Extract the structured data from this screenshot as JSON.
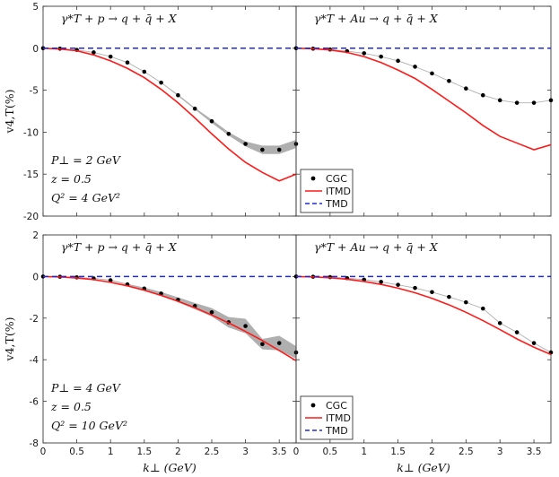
{
  "colors": {
    "cgc": "#000000",
    "itmd": "#ff1a1a",
    "tmd": "#1f2bd6",
    "band": "#a6a6a6",
    "guide": "#b0b0b0"
  },
  "chart_data": [
    {
      "type": "scatter",
      "panel": "top-left",
      "process": "γ*T + p → q + q̄ + X",
      "xlim": [
        0,
        3.75
      ],
      "ylim": [
        -20,
        5
      ],
      "xticks": [
        "0",
        "0.5",
        "1",
        "1.5",
        "2",
        "2.5",
        "3",
        "3.5"
      ],
      "yticks": [
        "5",
        "0",
        "-5",
        "-10",
        "-15",
        "-20"
      ],
      "ylabel": "v4,T(%)",
      "params": [
        "P⊥ = 2 GeV",
        "z = 0.5",
        "Q² = 4 GeV²"
      ],
      "series": [
        {
          "name": "CGC",
          "style": "points",
          "x": [
            0,
            0.25,
            0.5,
            0.75,
            1.0,
            1.25,
            1.5,
            1.75,
            2.0,
            2.25,
            2.5,
            2.75,
            3.0,
            3.25,
            3.5,
            3.75
          ],
          "y": [
            0,
            -0.05,
            -0.2,
            -0.5,
            -1.0,
            -1.7,
            -2.8,
            -4.1,
            -5.6,
            -7.2,
            -8.7,
            -10.2,
            -11.4,
            -12.1,
            -12.1,
            -11.4
          ],
          "band": [
            0,
            0,
            0,
            0,
            0,
            0,
            0,
            0,
            0.1,
            0.1,
            0.2,
            0.2,
            0.3,
            0.5,
            0.5,
            0.5
          ]
        },
        {
          "name": "ITMD",
          "style": "line",
          "x": [
            0,
            0.25,
            0.5,
            0.75,
            1.0,
            1.25,
            1.5,
            1.75,
            2.0,
            2.25,
            2.5,
            2.75,
            3.0,
            3.25,
            3.5,
            3.75
          ],
          "y": [
            0,
            -0.1,
            -0.3,
            -0.8,
            -1.5,
            -2.4,
            -3.5,
            -4.9,
            -6.5,
            -8.3,
            -10.2,
            -12.0,
            -13.6,
            -14.8,
            -15.8,
            -15.0
          ]
        },
        {
          "name": "TMD",
          "style": "dashed",
          "x": [
            0,
            3.75
          ],
          "y": [
            0,
            0
          ]
        }
      ]
    },
    {
      "type": "scatter",
      "panel": "top-right",
      "process": "γ*T + Au → q + q̄ + X",
      "xlim": [
        0,
        3.75
      ],
      "ylim": [
        -20,
        5
      ],
      "xticks": [
        "0",
        "0.5",
        "1",
        "1.5",
        "2",
        "2.5",
        "3",
        "3.5"
      ],
      "legend": [
        "CGC",
        "ITMD",
        "TMD"
      ],
      "series": [
        {
          "name": "CGC",
          "style": "points",
          "x": [
            0,
            0.25,
            0.5,
            0.75,
            1.0,
            1.25,
            1.5,
            1.75,
            2.0,
            2.25,
            2.5,
            2.75,
            3.0,
            3.25,
            3.5,
            3.75
          ],
          "y": [
            0,
            -0.05,
            -0.15,
            -0.35,
            -0.6,
            -1.0,
            -1.5,
            -2.2,
            -3.0,
            -3.9,
            -4.8,
            -5.6,
            -6.2,
            -6.5,
            -6.5,
            -6.2
          ],
          "band": [
            0,
            0,
            0,
            0,
            0,
            0,
            0,
            0,
            0,
            0,
            0,
            0,
            0,
            0,
            0,
            0
          ]
        },
        {
          "name": "ITMD",
          "style": "line",
          "x": [
            0,
            0.25,
            0.5,
            0.75,
            1.0,
            1.25,
            1.5,
            1.75,
            2.0,
            2.25,
            2.5,
            2.75,
            3.0,
            3.25,
            3.5,
            3.75
          ],
          "y": [
            0,
            -0.05,
            -0.2,
            -0.5,
            -1.0,
            -1.7,
            -2.6,
            -3.6,
            -4.9,
            -6.3,
            -7.7,
            -9.2,
            -10.5,
            -11.3,
            -12.1,
            -11.5
          ]
        },
        {
          "name": "TMD",
          "style": "dashed",
          "x": [
            0,
            3.75
          ],
          "y": [
            0,
            0
          ]
        }
      ]
    },
    {
      "type": "scatter",
      "panel": "bottom-left",
      "process": "γ*T + p → q + q̄ + X",
      "xlim": [
        0,
        3.75
      ],
      "ylim": [
        -8,
        2
      ],
      "xticks": [
        "0",
        "0.5",
        "1",
        "1.5",
        "2",
        "2.5",
        "3",
        "3.5"
      ],
      "yticks": [
        "2",
        "0",
        "-2",
        "-4",
        "-6",
        "-8"
      ],
      "xlabel": "k⊥ (GeV)",
      "ylabel": "v4,T(%)",
      "params": [
        "P⊥ = 4 GeV",
        "z = 0.5",
        "Q² = 10 GeV²"
      ],
      "series": [
        {
          "name": "CGC",
          "style": "points",
          "x": [
            0,
            0.25,
            0.5,
            0.75,
            1.0,
            1.25,
            1.5,
            1.75,
            2.0,
            2.25,
            2.5,
            2.75,
            3.0,
            3.25,
            3.5,
            3.75
          ],
          "y": [
            0,
            -0.01,
            -0.04,
            -0.09,
            -0.18,
            -0.38,
            -0.58,
            -0.82,
            -1.12,
            -1.42,
            -1.72,
            -2.2,
            -2.38,
            -3.25,
            -3.2,
            -3.65
          ],
          "band": [
            0,
            0,
            0,
            0.01,
            0.02,
            0.03,
            0.05,
            0.08,
            0.12,
            0.15,
            0.2,
            0.25,
            0.35,
            0.25,
            0.35,
            0.3
          ]
        },
        {
          "name": "ITMD",
          "style": "line",
          "x": [
            0,
            0.25,
            0.5,
            0.75,
            1.0,
            1.25,
            1.5,
            1.75,
            2.0,
            2.25,
            2.5,
            2.75,
            3.0,
            3.25,
            3.5,
            3.75
          ],
          "y": [
            0,
            -0.02,
            -0.07,
            -0.15,
            -0.28,
            -0.45,
            -0.66,
            -0.91,
            -1.19,
            -1.5,
            -1.85,
            -2.23,
            -2.64,
            -3.08,
            -3.56,
            -4.05
          ]
        },
        {
          "name": "TMD",
          "style": "dashed",
          "x": [
            0,
            3.75
          ],
          "y": [
            0,
            0
          ]
        }
      ]
    },
    {
      "type": "scatter",
      "panel": "bottom-right",
      "process": "γ*T + Au → q + q̄ + X",
      "xlim": [
        0,
        3.75
      ],
      "ylim": [
        -8,
        2
      ],
      "xticks": [
        "0",
        "0.5",
        "1",
        "1.5",
        "2",
        "2.5",
        "3",
        "3.5"
      ],
      "xlabel": "k⊥ (GeV)",
      "legend": [
        "CGC",
        "ITMD",
        "TMD"
      ],
      "series": [
        {
          "name": "CGC",
          "style": "points",
          "x": [
            0,
            0.25,
            0.5,
            0.75,
            1.0,
            1.25,
            1.5,
            1.75,
            2.0,
            2.25,
            2.5,
            2.75,
            3.0,
            3.25,
            3.5,
            3.75
          ],
          "y": [
            0,
            -0.01,
            -0.03,
            -0.08,
            -0.15,
            -0.26,
            -0.4,
            -0.55,
            -0.75,
            -0.98,
            -1.24,
            -1.54,
            -2.24,
            -2.68,
            -3.2,
            -3.65
          ],
          "band": [
            0,
            0,
            0,
            0,
            0,
            0,
            0,
            0,
            0,
            0,
            0,
            0,
            0,
            0,
            0,
            0
          ]
        },
        {
          "name": "ITMD",
          "style": "line",
          "x": [
            0,
            0.25,
            0.5,
            0.75,
            1.0,
            1.25,
            1.5,
            1.75,
            2.0,
            2.25,
            2.5,
            2.75,
            3.0,
            3.25,
            3.5,
            3.75
          ],
          "y": [
            0,
            -0.02,
            -0.06,
            -0.13,
            -0.24,
            -0.38,
            -0.56,
            -0.78,
            -1.05,
            -1.36,
            -1.72,
            -2.12,
            -2.55,
            -3.0,
            -3.4,
            -3.75
          ]
        },
        {
          "name": "TMD",
          "style": "dashed",
          "x": [
            0,
            3.75
          ],
          "y": [
            0,
            0
          ]
        }
      ]
    }
  ]
}
